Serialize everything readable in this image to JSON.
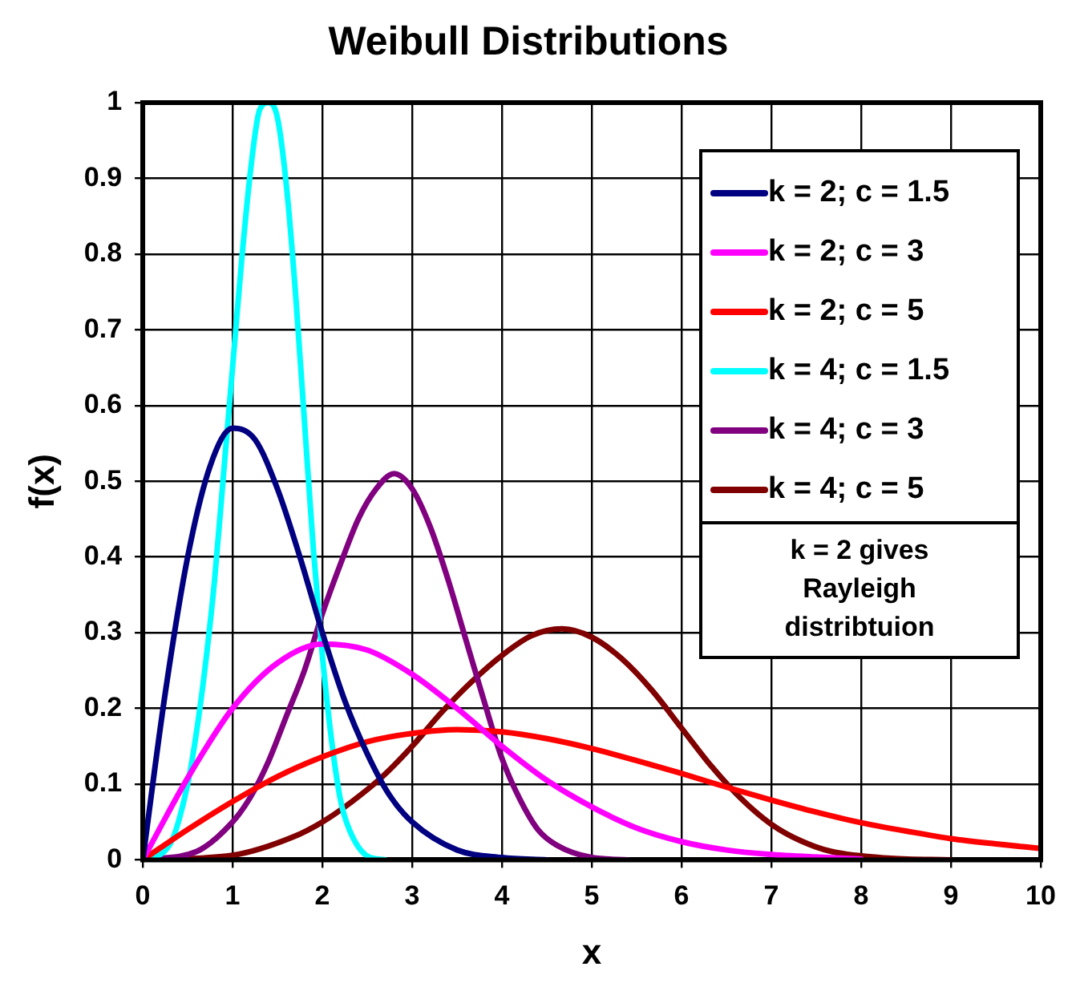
{
  "chart_data": {
    "type": "line",
    "title": "Weibull Distributions",
    "xlabel": "x",
    "ylabel": "f(x)",
    "xlim": [
      0,
      10
    ],
    "xticks": [
      0,
      1,
      2,
      3,
      4,
      5,
      6,
      7,
      8,
      9,
      10
    ],
    "ylim": [
      0,
      1
    ],
    "yticks": [
      0,
      0.1,
      0.2,
      0.3,
      0.4,
      0.5,
      0.6,
      0.7,
      0.8,
      0.9,
      1
    ],
    "grid": true,
    "legend": "top right",
    "marker": "none",
    "line_style": "solid",
    "annotations": [
      "k = 2 gives Rayleigh distribtuion"
    ],
    "series": [
      {
        "name": "k = 2; c = 1.5",
        "color": "#000080",
        "x": [
          0,
          0.25,
          0.5,
          0.75,
          1,
          1.25,
          1.5,
          1.75,
          2,
          2.25,
          2.5,
          2.75,
          3,
          3.5,
          4,
          4.5
        ],
        "values": [
          0,
          0.22,
          0.4,
          0.52,
          0.57,
          0.555,
          0.49,
          0.4,
          0.3,
          0.21,
          0.14,
          0.085,
          0.05,
          0.013,
          0.003,
          0
        ]
      },
      {
        "name": "k = 2; c = 3",
        "color": "#ff00ff",
        "x": [
          0,
          0.5,
          1,
          1.5,
          2,
          2.5,
          3,
          3.5,
          4,
          4.5,
          5,
          5.5,
          6,
          6.5,
          7,
          8
        ],
        "values": [
          0,
          0.108,
          0.2,
          0.26,
          0.285,
          0.277,
          0.245,
          0.2,
          0.15,
          0.105,
          0.07,
          0.042,
          0.024,
          0.013,
          0.007,
          0.001
        ]
      },
      {
        "name": "k = 2; c = 5",
        "color": "#ff0000",
        "x": [
          0,
          0.5,
          1,
          1.5,
          2,
          2.5,
          3,
          3.5,
          4,
          4.5,
          5,
          5.5,
          6,
          6.5,
          7,
          7.5,
          8,
          8.5,
          9,
          9.5,
          10
        ],
        "values": [
          0,
          0.04,
          0.077,
          0.11,
          0.136,
          0.156,
          0.167,
          0.172,
          0.169,
          0.16,
          0.147,
          0.131,
          0.114,
          0.096,
          0.079,
          0.063,
          0.049,
          0.038,
          0.028,
          0.021,
          0.015
        ]
      },
      {
        "name": "k = 4; c = 1.5",
        "color": "#00ffff",
        "x": [
          0,
          0.3,
          0.5,
          0.6,
          0.7,
          0.8,
          0.9,
          1,
          1.1,
          1.2,
          1.3,
          1.4,
          1.5,
          1.6,
          1.7,
          1.8,
          1.9,
          2,
          2.1,
          2.2,
          2.3,
          2.5,
          2.7
        ],
        "values": [
          0,
          0.02,
          0.1,
          0.17,
          0.26,
          0.37,
          0.51,
          0.65,
          0.79,
          0.91,
          0.99,
          1,
          0.98,
          0.89,
          0.75,
          0.58,
          0.41,
          0.27,
          0.16,
          0.08,
          0.04,
          0.005,
          0
        ]
      },
      {
        "name": "k = 4; c = 3",
        "color": "#800080",
        "x": [
          0,
          0.6,
          1,
          1.2,
          1.4,
          1.6,
          1.8,
          2,
          2.2,
          2.4,
          2.6,
          2.8,
          3,
          3.2,
          3.4,
          3.6,
          3.8,
          4,
          4.2,
          4.4,
          4.6,
          5,
          5.4
        ],
        "values": [
          0,
          0.011,
          0.05,
          0.083,
          0.13,
          0.19,
          0.25,
          0.325,
          0.39,
          0.45,
          0.49,
          0.51,
          0.49,
          0.44,
          0.37,
          0.29,
          0.21,
          0.134,
          0.08,
          0.04,
          0.02,
          0.003,
          0
        ]
      },
      {
        "name": "k = 4; c = 5",
        "color": "#800000",
        "x": [
          0,
          1,
          1.67,
          2,
          2.33,
          2.67,
          3,
          3.33,
          3.67,
          4,
          4.33,
          4.67,
          5,
          5.33,
          5.67,
          6,
          6.33,
          6.67,
          7,
          7.33,
          7.67,
          8.33,
          9
        ],
        "values": [
          0,
          0.006,
          0.03,
          0.05,
          0.077,
          0.11,
          0.15,
          0.195,
          0.236,
          0.27,
          0.296,
          0.305,
          0.294,
          0.266,
          0.224,
          0.174,
          0.124,
          0.08,
          0.047,
          0.025,
          0.011,
          0.002,
          0
        ]
      }
    ]
  }
}
